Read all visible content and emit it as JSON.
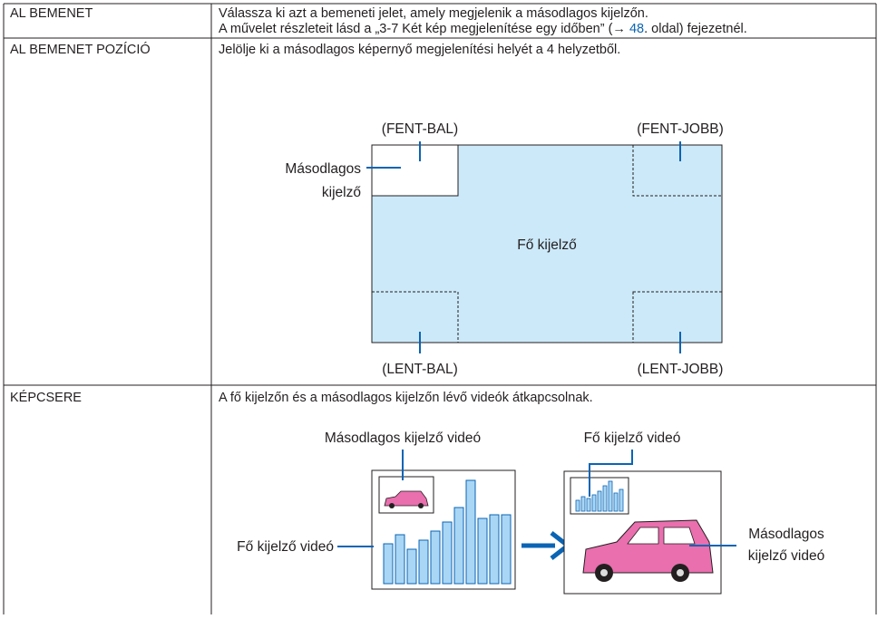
{
  "table": {
    "rows": [
      {
        "label": "AL BEMENET",
        "description": "Válassza ki azt a bemeneti jelet, amely megjelenik a másodlagos kijelzőn.",
        "reference": {
          "before": "A művelet részleteit lásd a „3-7 Két kép megjelenítése egy időben” (→ ",
          "page": "48",
          "after": ". oldal) fejezetnél."
        }
      },
      {
        "label": "AL BEMENET POZÍCIÓ",
        "description": "Jelölje ki a másodlagos képernyő megjelenítési helyét a 4 helyzetből.",
        "diagram": {
          "top_left": "(FENT-BAL)",
          "top_right": "(FENT-JOBB)",
          "bottom_left": "(LENT-BAL)",
          "bottom_right": "(LENT-JOBB)",
          "sub_screen": [
            "Másodlagos",
            "kijelző"
          ],
          "main_screen": "Fő kijelző"
        }
      },
      {
        "label": "KÉPCSERE",
        "description": "A fő kijelzőn és a másodlagos kijelzőn lévő videók átkapcsolnak.",
        "diagram": {
          "sub_video_top": "Másodlagos kijelző videó",
          "main_video_top": "Fő kijelző videó",
          "main_video_left": "Fő kijelző videó",
          "sub_video_right": [
            "Másodlagos",
            "kijelző videó"
          ]
        }
      }
    ]
  }
}
